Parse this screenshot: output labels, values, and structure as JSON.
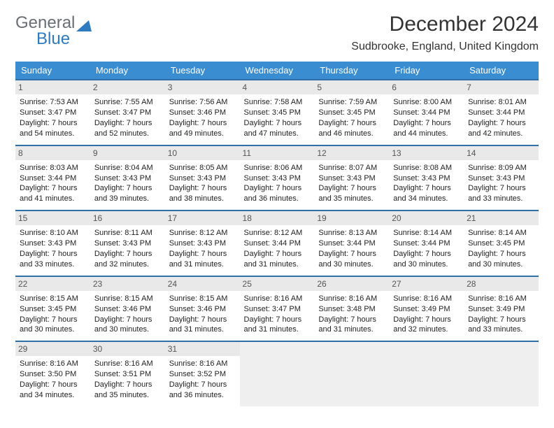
{
  "logo": {
    "line1": "General",
    "line2": "Blue",
    "icon_color": "#2f7bbf"
  },
  "title": "December 2024",
  "location": "Sudbrooke, England, United Kingdom",
  "colors": {
    "header_bg": "#3a8dd0",
    "header_text": "#ffffff",
    "row_border": "#2f6fa8",
    "daynum_bg": "#e9e9e9",
    "empty_bg": "#efefef"
  },
  "weekdays": [
    "Sunday",
    "Monday",
    "Tuesday",
    "Wednesday",
    "Thursday",
    "Friday",
    "Saturday"
  ],
  "days": [
    {
      "n": 1,
      "sunrise": "7:53 AM",
      "sunset": "3:47 PM",
      "daylight": "7 hours and 54 minutes."
    },
    {
      "n": 2,
      "sunrise": "7:55 AM",
      "sunset": "3:47 PM",
      "daylight": "7 hours and 52 minutes."
    },
    {
      "n": 3,
      "sunrise": "7:56 AM",
      "sunset": "3:46 PM",
      "daylight": "7 hours and 49 minutes."
    },
    {
      "n": 4,
      "sunrise": "7:58 AM",
      "sunset": "3:45 PM",
      "daylight": "7 hours and 47 minutes."
    },
    {
      "n": 5,
      "sunrise": "7:59 AM",
      "sunset": "3:45 PM",
      "daylight": "7 hours and 46 minutes."
    },
    {
      "n": 6,
      "sunrise": "8:00 AM",
      "sunset": "3:44 PM",
      "daylight": "7 hours and 44 minutes."
    },
    {
      "n": 7,
      "sunrise": "8:01 AM",
      "sunset": "3:44 PM",
      "daylight": "7 hours and 42 minutes."
    },
    {
      "n": 8,
      "sunrise": "8:03 AM",
      "sunset": "3:44 PM",
      "daylight": "7 hours and 41 minutes."
    },
    {
      "n": 9,
      "sunrise": "8:04 AM",
      "sunset": "3:43 PM",
      "daylight": "7 hours and 39 minutes."
    },
    {
      "n": 10,
      "sunrise": "8:05 AM",
      "sunset": "3:43 PM",
      "daylight": "7 hours and 38 minutes."
    },
    {
      "n": 11,
      "sunrise": "8:06 AM",
      "sunset": "3:43 PM",
      "daylight": "7 hours and 36 minutes."
    },
    {
      "n": 12,
      "sunrise": "8:07 AM",
      "sunset": "3:43 PM",
      "daylight": "7 hours and 35 minutes."
    },
    {
      "n": 13,
      "sunrise": "8:08 AM",
      "sunset": "3:43 PM",
      "daylight": "7 hours and 34 minutes."
    },
    {
      "n": 14,
      "sunrise": "8:09 AM",
      "sunset": "3:43 PM",
      "daylight": "7 hours and 33 minutes."
    },
    {
      "n": 15,
      "sunrise": "8:10 AM",
      "sunset": "3:43 PM",
      "daylight": "7 hours and 33 minutes."
    },
    {
      "n": 16,
      "sunrise": "8:11 AM",
      "sunset": "3:43 PM",
      "daylight": "7 hours and 32 minutes."
    },
    {
      "n": 17,
      "sunrise": "8:12 AM",
      "sunset": "3:43 PM",
      "daylight": "7 hours and 31 minutes."
    },
    {
      "n": 18,
      "sunrise": "8:12 AM",
      "sunset": "3:44 PM",
      "daylight": "7 hours and 31 minutes."
    },
    {
      "n": 19,
      "sunrise": "8:13 AM",
      "sunset": "3:44 PM",
      "daylight": "7 hours and 30 minutes."
    },
    {
      "n": 20,
      "sunrise": "8:14 AM",
      "sunset": "3:44 PM",
      "daylight": "7 hours and 30 minutes."
    },
    {
      "n": 21,
      "sunrise": "8:14 AM",
      "sunset": "3:45 PM",
      "daylight": "7 hours and 30 minutes."
    },
    {
      "n": 22,
      "sunrise": "8:15 AM",
      "sunset": "3:45 PM",
      "daylight": "7 hours and 30 minutes."
    },
    {
      "n": 23,
      "sunrise": "8:15 AM",
      "sunset": "3:46 PM",
      "daylight": "7 hours and 30 minutes."
    },
    {
      "n": 24,
      "sunrise": "8:15 AM",
      "sunset": "3:46 PM",
      "daylight": "7 hours and 31 minutes."
    },
    {
      "n": 25,
      "sunrise": "8:16 AM",
      "sunset": "3:47 PM",
      "daylight": "7 hours and 31 minutes."
    },
    {
      "n": 26,
      "sunrise": "8:16 AM",
      "sunset": "3:48 PM",
      "daylight": "7 hours and 31 minutes."
    },
    {
      "n": 27,
      "sunrise": "8:16 AM",
      "sunset": "3:49 PM",
      "daylight": "7 hours and 32 minutes."
    },
    {
      "n": 28,
      "sunrise": "8:16 AM",
      "sunset": "3:49 PM",
      "daylight": "7 hours and 33 minutes."
    },
    {
      "n": 29,
      "sunrise": "8:16 AM",
      "sunset": "3:50 PM",
      "daylight": "7 hours and 34 minutes."
    },
    {
      "n": 30,
      "sunrise": "8:16 AM",
      "sunset": "3:51 PM",
      "daylight": "7 hours and 35 minutes."
    },
    {
      "n": 31,
      "sunrise": "8:16 AM",
      "sunset": "3:52 PM",
      "daylight": "7 hours and 36 minutes."
    }
  ],
  "labels": {
    "sunrise": "Sunrise: ",
    "sunset": "Sunset: ",
    "daylight": "Daylight: "
  }
}
